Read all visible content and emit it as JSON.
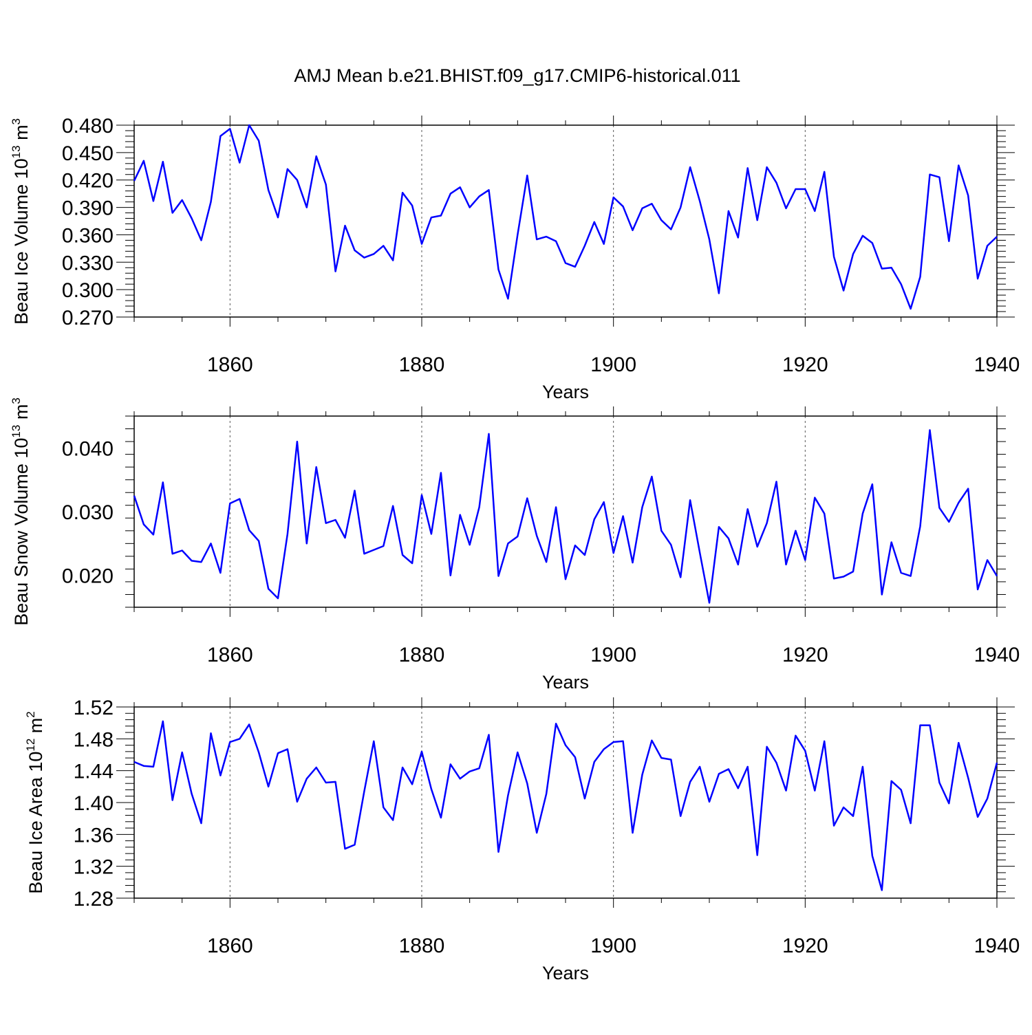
{
  "figure": {
    "title": "AMJ Mean b.e21.BHIST.f09_g17.CMIP6-historical.011",
    "line_color": "#0000ff"
  },
  "chart_data": [
    {
      "type": "line",
      "name": "ice-volume",
      "title": "",
      "xlabel": "Years",
      "ylabel": {
        "prefix": "Beau Ice Volume 10",
        "exp": "13",
        "unit": " m",
        "unit_exp": "3"
      },
      "xlim": [
        1850,
        1940
      ],
      "ylim": [
        0.27,
        0.48
      ],
      "xticks": [
        "1860",
        "1880",
        "1900",
        "1920",
        "1940"
      ],
      "yticks": [
        "0.270",
        "0.300",
        "0.330",
        "0.360",
        "0.390",
        "0.420",
        "0.450",
        "0.480"
      ],
      "grid": "dashed vertical at major x ticks",
      "series": [
        {
          "name": "AMJ Mean",
          "x_start": 1850,
          "values": [
            0.419,
            0.441,
            0.397,
            0.44,
            0.384,
            0.398,
            0.378,
            0.354,
            0.396,
            0.468,
            0.476,
            0.439,
            0.48,
            0.463,
            0.409,
            0.379,
            0.432,
            0.42,
            0.39,
            0.446,
            0.415,
            0.32,
            0.37,
            0.343,
            0.335,
            0.339,
            0.348,
            0.332,
            0.406,
            0.392,
            0.35,
            0.379,
            0.381,
            0.405,
            0.412,
            0.39,
            0.402,
            0.409,
            0.322,
            0.29,
            0.36,
            0.425,
            0.355,
            0.358,
            0.353,
            0.329,
            0.325,
            0.348,
            0.374,
            0.35,
            0.401,
            0.391,
            0.365,
            0.389,
            0.394,
            0.376,
            0.366,
            0.39,
            0.434,
            0.397,
            0.355,
            0.296,
            0.386,
            0.357,
            0.433,
            0.376,
            0.434,
            0.417,
            0.389,
            0.41,
            0.41,
            0.386,
            0.429,
            0.336,
            0.299,
            0.339,
            0.359,
            0.351,
            0.323,
            0.324,
            0.306,
            0.279,
            0.314,
            0.426,
            0.423,
            0.353,
            0.436,
            0.403,
            0.312,
            0.348,
            0.358
          ]
        }
      ]
    },
    {
      "type": "line",
      "name": "snow-volume",
      "title": "",
      "xlabel": "Years",
      "ylabel": {
        "prefix": "Beau Snow Volume 10",
        "exp": "13",
        "unit": " m",
        "unit_exp": "3"
      },
      "xlim": [
        1850,
        1940
      ],
      "ylim": [
        0.015,
        0.045
      ],
      "xticks": [
        "1860",
        "1880",
        "1900",
        "1920",
        "1940"
      ],
      "yticks": [
        "0.020",
        "0.030",
        "0.040"
      ],
      "grid": "dashed vertical at major x ticks",
      "series": [
        {
          "name": "AMJ Mean",
          "x_start": 1850,
          "values": [
            0.0325,
            0.028,
            0.0264,
            0.0346,
            0.0234,
            0.0239,
            0.0223,
            0.0221,
            0.025,
            0.0204,
            0.0313,
            0.032,
            0.0271,
            0.0254,
            0.0179,
            0.0164,
            0.0265,
            0.041,
            0.025,
            0.037,
            0.0282,
            0.0287,
            0.0259,
            0.0333,
            0.0234,
            0.024,
            0.0246,
            0.0309,
            0.0232,
            0.0219,
            0.0326,
            0.0265,
            0.0361,
            0.02,
            0.0295,
            0.0248,
            0.0307,
            0.0422,
            0.0199,
            0.025,
            0.0261,
            0.0321,
            0.0262,
            0.0221,
            0.0307,
            0.0194,
            0.0247,
            0.0232,
            0.0288,
            0.0315,
            0.0235,
            0.0293,
            0.022,
            0.0307,
            0.0355,
            0.027,
            0.0248,
            0.0197,
            0.0318,
            0.0236,
            0.0157,
            0.0276,
            0.0258,
            0.0217,
            0.0304,
            0.0245,
            0.0282,
            0.0347,
            0.0217,
            0.027,
            0.0224,
            0.0322,
            0.0297,
            0.0195,
            0.0198,
            0.0206,
            0.0297,
            0.0343,
            0.017,
            0.0252,
            0.0204,
            0.0199,
            0.0277,
            0.0428,
            0.0306,
            0.0284,
            0.0314,
            0.0336,
            0.0178,
            0.0224,
            0.0199
          ]
        }
      ]
    },
    {
      "type": "line",
      "name": "ice-area",
      "title": "",
      "xlabel": "Years",
      "ylabel": {
        "prefix": "Beau Ice Area 10",
        "exp": "12",
        "unit": " m",
        "unit_exp": "2"
      },
      "xlim": [
        1850,
        1940
      ],
      "ylim": [
        1.28,
        1.52
      ],
      "xticks": [
        "1860",
        "1880",
        "1900",
        "1920",
        "1940"
      ],
      "yticks": [
        "1.28",
        "1.32",
        "1.36",
        "1.40",
        "1.44",
        "1.48",
        "1.52"
      ],
      "grid": "dashed vertical at major x ticks",
      "series": [
        {
          "name": "AMJ Mean",
          "x_start": 1850,
          "values": [
            1.451,
            1.446,
            1.445,
            1.502,
            1.403,
            1.463,
            1.411,
            1.374,
            1.487,
            1.434,
            1.476,
            1.48,
            1.498,
            1.463,
            1.42,
            1.462,
            1.467,
            1.401,
            1.43,
            1.444,
            1.425,
            1.426,
            1.342,
            1.347,
            1.414,
            1.477,
            1.394,
            1.378,
            1.444,
            1.423,
            1.464,
            1.417,
            1.381,
            1.448,
            1.43,
            1.439,
            1.443,
            1.485,
            1.338,
            1.409,
            1.463,
            1.424,
            1.362,
            1.411,
            1.499,
            1.472,
            1.457,
            1.405,
            1.451,
            1.467,
            1.476,
            1.477,
            1.362,
            1.435,
            1.478,
            1.456,
            1.454,
            1.383,
            1.426,
            1.445,
            1.401,
            1.436,
            1.442,
            1.418,
            1.445,
            1.334,
            1.47,
            1.45,
            1.415,
            1.484,
            1.465,
            1.415,
            1.477,
            1.371,
            1.394,
            1.383,
            1.445,
            1.333,
            1.29,
            1.427,
            1.416,
            1.374,
            1.497,
            1.497,
            1.425,
            1.399,
            1.475,
            1.431,
            1.382,
            1.405,
            1.45
          ]
        }
      ]
    }
  ]
}
